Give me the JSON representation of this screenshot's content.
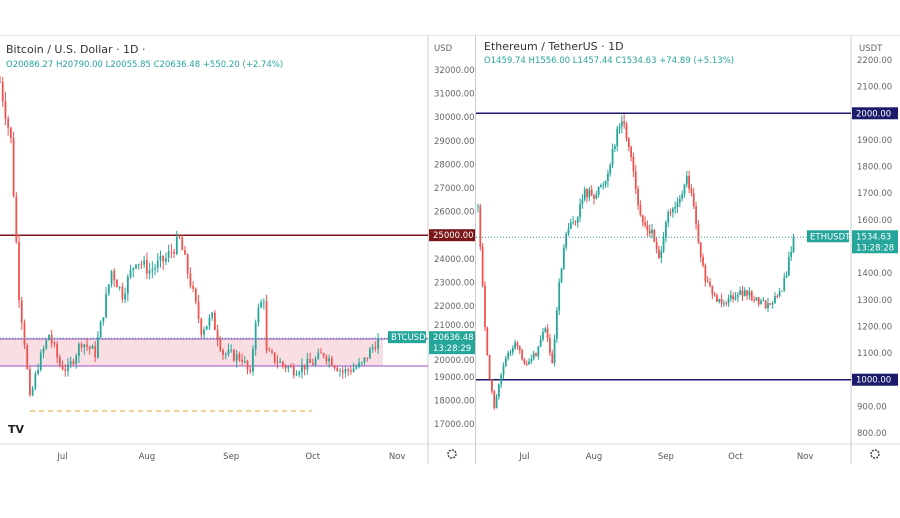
{
  "chart_data": [
    {
      "type": "candlestick",
      "title": "Bitcoin / U.S. Dollar · 1D ·",
      "ohlc": {
        "o": "O20086.27",
        "h": "H20790.00",
        "l": "L20055.85",
        "c": "C20636.48",
        "chg": "+550.20 (+2.74%)"
      },
      "currency": "USD",
      "ylim": [
        16500,
        33000
      ],
      "yticks": [
        32000,
        31000,
        30000,
        29000,
        28000,
        27000,
        26000,
        24000,
        23000,
        22000,
        21000,
        20000,
        19000,
        18000,
        17000
      ],
      "yticklabels": [
        "32000.00",
        "31000.00",
        "30000.00",
        "29000.00",
        "28000.00",
        "27000.00",
        "26000.00",
        "24000.00",
        "23000.00",
        "22000.00",
        "21000.00",
        "20000.00",
        "19000.00",
        "18000.00",
        "17000.00"
      ],
      "xticks": [
        "Jul",
        "Aug",
        "Sep",
        "Oct",
        "Nov"
      ],
      "xtick_days": [
        23,
        54,
        85,
        115,
        146
      ],
      "level": {
        "value": 25000,
        "label": "25000.00"
      },
      "zone": [
        19460,
        20600
      ],
      "dashed": 17550,
      "last": {
        "symbol": "BTCUSD",
        "price": "20636.48",
        "value": 20636.48,
        "timer": "13:28:29"
      },
      "days": 139,
      "anchors": [
        [
          0,
          31500
        ],
        [
          4,
          29000
        ],
        [
          7,
          22500
        ],
        [
          9,
          20500
        ],
        [
          11,
          18000
        ],
        [
          14,
          19500
        ],
        [
          18,
          20800
        ],
        [
          22,
          19500
        ],
        [
          25,
          19300
        ],
        [
          30,
          20500
        ],
        [
          35,
          20000
        ],
        [
          41,
          23500
        ],
        [
          45,
          22500
        ],
        [
          50,
          24000
        ],
        [
          55,
          23500
        ],
        [
          61,
          24000
        ],
        [
          66,
          24800
        ],
        [
          70,
          23000
        ],
        [
          74,
          21000
        ],
        [
          78,
          21500
        ],
        [
          82,
          20000
        ],
        [
          89,
          19800
        ],
        [
          92,
          19000
        ],
        [
          94,
          21500
        ],
        [
          97,
          22400
        ],
        [
          98,
          20000
        ],
        [
          104,
          19500
        ],
        [
          108,
          19300
        ],
        [
          115,
          19600
        ],
        [
          119,
          20000
        ],
        [
          126,
          19200
        ],
        [
          133,
          19500
        ],
        [
          139,
          20636
        ]
      ]
    },
    {
      "type": "candlestick",
      "title": "Ethereum / TetherUS · 1D",
      "ohlc": {
        "o": "O1459.74",
        "h": "H1556.00",
        "l": "L1457.44",
        "c": "C1534.63",
        "chg": "+74.89 (+5.13%)"
      },
      "currency": "USDT",
      "ylim": [
        750,
        2250
      ],
      "yticks": [
        2200,
        2100,
        1900,
        1800,
        1700,
        1600,
        1400,
        1300,
        1200,
        1100,
        900,
        800
      ],
      "yticklabels": [
        "2200.00",
        "2100.00",
        "1900.00",
        "1800.00",
        "1700.00",
        "1600.00",
        "1400.00",
        "1300.00",
        "1200.00",
        "1100.00",
        "900.00",
        "800.00"
      ],
      "xticks": [
        "Jul",
        "Aug",
        "Sep",
        "Oct",
        "Nov"
      ],
      "xtick_days": [
        20,
        50,
        81,
        111,
        141
      ],
      "levels": [
        {
          "value": 2000,
          "label": "2000.00"
        },
        {
          "value": 1000,
          "label": "1000.00"
        }
      ],
      "last": {
        "symbol": "ETHUSDT",
        "price": "1534.63",
        "value": 1534.63,
        "timer": "13:28:28"
      },
      "days": 136,
      "anchors": [
        [
          0,
          1650
        ],
        [
          3,
          1200
        ],
        [
          5,
          1000
        ],
        [
          7,
          900
        ],
        [
          11,
          1050
        ],
        [
          16,
          1150
        ],
        [
          20,
          1050
        ],
        [
          25,
          1100
        ],
        [
          29,
          1200
        ],
        [
          32,
          1050
        ],
        [
          35,
          1350
        ],
        [
          38,
          1550
        ],
        [
          42,
          1600
        ],
        [
          46,
          1700
        ],
        [
          51,
          1700
        ],
        [
          55,
          1750
        ],
        [
          59,
          1900
        ],
        [
          62,
          1980
        ],
        [
          66,
          1850
        ],
        [
          70,
          1600
        ],
        [
          75,
          1550
        ],
        [
          78,
          1450
        ],
        [
          81,
          1600
        ],
        [
          86,
          1650
        ],
        [
          90,
          1750
        ],
        [
          92,
          1700
        ],
        [
          96,
          1450
        ],
        [
          99,
          1350
        ],
        [
          103,
          1300
        ],
        [
          107,
          1300
        ],
        [
          112,
          1330
        ],
        [
          116,
          1320
        ],
        [
          120,
          1300
        ],
        [
          125,
          1280
        ],
        [
          130,
          1320
        ],
        [
          133,
          1400
        ],
        [
          136,
          1535
        ]
      ]
    }
  ]
}
